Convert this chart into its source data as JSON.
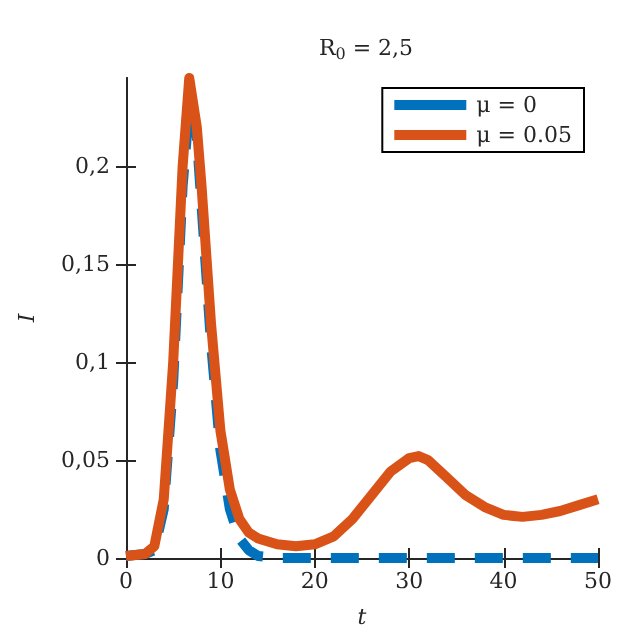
{
  "chart_data": {
    "type": "line",
    "title": "R$_{0}$ = 2,5",
    "xlabel": "t",
    "ylabel": "I",
    "xlim": [
      0,
      50
    ],
    "xticks": [
      0,
      10,
      20,
      30,
      40,
      50
    ],
    "ylim": [
      0,
      0.245
    ],
    "yticks": [
      0,
      {
        "value": 0.05,
        "label": "0,05"
      },
      {
        "value": 0.1,
        "label": "0,1"
      },
      {
        "value": 0.15,
        "label": "0,15"
      },
      {
        "value": 0.2,
        "label": "0,2"
      }
    ],
    "grid": false,
    "legend": "top right",
    "marker": "none",
    "series": [
      {
        "name": "μ = 0",
        "color": "#0072bd",
        "line_style": "dashed",
        "x": [
          0,
          2,
          3,
          4,
          5,
          6,
          6.7,
          7.5,
          8,
          9,
          10,
          11,
          12,
          13,
          14,
          16,
          20,
          25,
          30,
          35,
          40,
          45,
          50
        ],
        "values": [
          0.001,
          0.002,
          0.004,
          0.025,
          0.09,
          0.19,
          0.23,
          0.215,
          0.18,
          0.11,
          0.055,
          0.025,
          0.01,
          0.004,
          0.001,
          0,
          0,
          0,
          0,
          0,
          0,
          0,
          0
        ]
      },
      {
        "name": "μ = 0.05",
        "color": "#d95319",
        "line_style": "solid",
        "x": [
          0,
          2,
          3,
          4,
          5,
          6,
          6.7,
          7.5,
          8,
          9,
          10,
          11,
          12,
          13,
          14,
          16,
          18,
          20,
          22,
          24,
          26,
          28,
          30,
          31,
          32,
          34,
          36,
          38,
          40,
          42,
          44,
          46,
          48,
          50
        ],
        "values": [
          0.001,
          0.002,
          0.006,
          0.03,
          0.1,
          0.2,
          0.245,
          0.22,
          0.19,
          0.12,
          0.065,
          0.035,
          0.02,
          0.013,
          0.01,
          0.007,
          0.006,
          0.007,
          0.011,
          0.02,
          0.032,
          0.044,
          0.051,
          0.052,
          0.05,
          0.041,
          0.032,
          0.026,
          0.022,
          0.021,
          0.022,
          0.024,
          0.027,
          0.03
        ]
      }
    ]
  }
}
